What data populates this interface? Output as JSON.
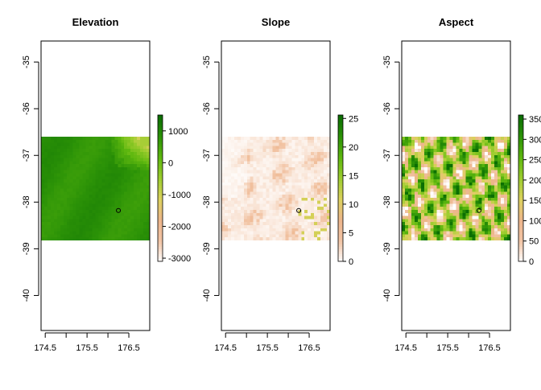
{
  "chart_data": [
    {
      "type": "heatmap",
      "title": "Elevation",
      "xlabel": "",
      "ylabel": "",
      "xlim": [
        174.4,
        177.0
      ],
      "ylim": [
        -40.75,
        -34.55
      ],
      "x_ticks": [
        "174.5",
        "175.5",
        "176.5"
      ],
      "x_tick_values": [
        174.5,
        175.5,
        176.5
      ],
      "x_minor_tick_values": [
        175.0,
        176.0
      ],
      "y_ticks": [
        "-35",
        "-36",
        "-37",
        "-38",
        "-39",
        "-40"
      ],
      "y_tick_values": [
        -35,
        -36,
        -37,
        -38,
        -39,
        -40
      ],
      "raster_extent": {
        "x": [
          174.4,
          177.0
        ],
        "y": [
          -38.82,
          -36.6
        ]
      },
      "point": {
        "x": 176.25,
        "y": -38.18
      },
      "legend": {
        "ticks": [
          "1000",
          "0",
          "-1000",
          "-2000",
          "-3000"
        ],
        "tick_values": [
          1000,
          0,
          -1000,
          -2000,
          -3000
        ],
        "range": [
          -3100,
          1500
        ]
      },
      "palette": [
        "#ffffff",
        "#f2c5a6",
        "#edb58c",
        "#ddd15e",
        "#9ecd2f",
        "#5fb80f",
        "#2c9307",
        "#0b6e03"
      ]
    },
    {
      "type": "heatmap",
      "title": "Slope",
      "xlabel": "",
      "ylabel": "",
      "xlim": [
        174.4,
        177.0
      ],
      "ylim": [
        -40.75,
        -34.55
      ],
      "x_ticks": [
        "174.5",
        "175.5",
        "176.5"
      ],
      "x_tick_values": [
        174.5,
        175.5,
        176.5
      ],
      "x_minor_tick_values": [
        175.0,
        176.0
      ],
      "y_ticks": [
        "-35",
        "-36",
        "-37",
        "-38",
        "-39",
        "-40"
      ],
      "y_tick_values": [
        -35,
        -36,
        -37,
        -38,
        -39,
        -40
      ],
      "raster_extent": {
        "x": [
          174.4,
          177.0
        ],
        "y": [
          -38.82,
          -36.6
        ]
      },
      "point": {
        "x": 176.25,
        "y": -38.18
      },
      "legend": {
        "ticks": [
          "25",
          "20",
          "15",
          "10",
          "5",
          "0"
        ],
        "tick_values": [
          25,
          20,
          15,
          10,
          5,
          0
        ],
        "range": [
          0,
          25.6
        ]
      },
      "palette": [
        "#ffffff",
        "#f2c5a6",
        "#edb58c",
        "#ddd15e",
        "#9ecd2f",
        "#5fb80f",
        "#2c9307",
        "#0b6e03"
      ]
    },
    {
      "type": "heatmap",
      "title": "Aspect",
      "xlabel": "",
      "ylabel": "",
      "xlim": [
        174.4,
        177.0
      ],
      "ylim": [
        -40.75,
        -34.55
      ],
      "x_ticks": [
        "174.5",
        "175.5",
        "176.5"
      ],
      "x_tick_values": [
        174.5,
        175.5,
        176.5
      ],
      "x_minor_tick_values": [
        175.0,
        176.0
      ],
      "y_ticks": [
        "-35",
        "-36",
        "-37",
        "-38",
        "-39",
        "-40"
      ],
      "y_tick_values": [
        -35,
        -36,
        -37,
        -38,
        -39,
        -40
      ],
      "raster_extent": {
        "x": [
          174.4,
          177.0
        ],
        "y": [
          -38.82,
          -36.6
        ]
      },
      "point": {
        "x": 176.25,
        "y": -38.18
      },
      "legend": {
        "ticks": [
          "350",
          "300",
          "250",
          "200",
          "150",
          "100",
          "50",
          "0"
        ],
        "tick_values": [
          350,
          300,
          250,
          200,
          150,
          100,
          50,
          0
        ],
        "range": [
          0,
          360
        ]
      },
      "palette": [
        "#ffffff",
        "#f2c5a6",
        "#edb58c",
        "#ddd15e",
        "#9ecd2f",
        "#5fb80f",
        "#2c9307",
        "#0b6e03"
      ]
    }
  ]
}
